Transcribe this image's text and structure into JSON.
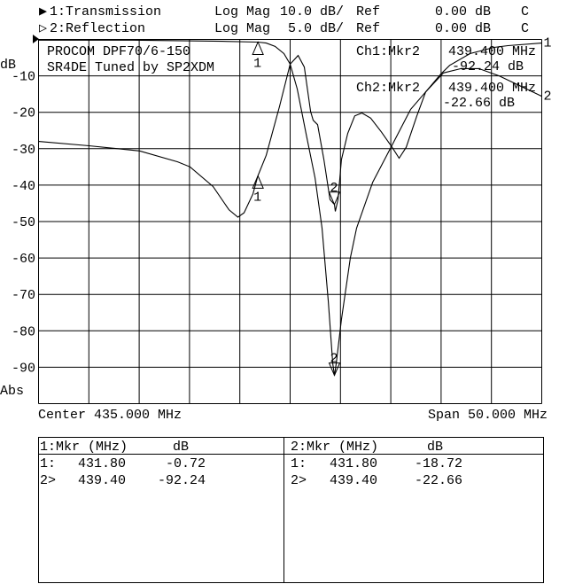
{
  "header": {
    "ch1": {
      "indicator": "▶",
      "name": "1:Transmission",
      "format": "Log Mag",
      "scale": "10.0 dB/",
      "ref_label": "Ref",
      "ref": "0.00 dB",
      "flag": "C"
    },
    "ch2": {
      "indicator": "▷",
      "name": "2:Reflection",
      "format": "Log Mag",
      "scale": "5.0 dB/",
      "ref_label": "Ref",
      "ref": "0.00 dB",
      "flag": "C"
    }
  },
  "annotation": {
    "title_line1": "PROCOM DPF70/6-150",
    "title_line2": "SR4DE Tuned by SP2XDM",
    "ch1_marker_label": "Ch1:Mkr2",
    "ch1_marker_freq": "439.400 MHz",
    "ch1_marker_value": "-92.24 dB",
    "ch2_marker_label": "Ch2:Mkr2",
    "ch2_marker_freq": "439.400 MHz",
    "ch2_marker_value": "-22.66 dB"
  },
  "footer": {
    "center": "Center 435.000 MHz",
    "span": "Span 50.000 MHz"
  },
  "marker_table": {
    "ch1": {
      "header_mkr": "1:Mkr (MHz)",
      "header_db": "dB",
      "rows": [
        {
          "id": "1:",
          "freq": "431.80",
          "db": "-0.72"
        },
        {
          "id": "2>",
          "freq": "439.40",
          "db": "-92.24"
        }
      ]
    },
    "ch2": {
      "header_mkr": "2:Mkr (MHz)",
      "header_db": "dB",
      "rows": [
        {
          "id": "1:",
          "freq": "431.80",
          "db": "-18.72"
        },
        {
          "id": "2>",
          "freq": "439.40",
          "db": "-22.66"
        }
      ]
    }
  },
  "chart_data": {
    "type": "line",
    "xlim": [
      410,
      460
    ],
    "x_unit": "MHz",
    "ylabel": "dB",
    "y_bottom_label": "Abs",
    "y_ticks": [
      "-10",
      "-20",
      "-30",
      "-40",
      "-50",
      "-60",
      "-70",
      "-80",
      "-90"
    ],
    "grid": true,
    "series": [
      {
        "name": "1:Transmission",
        "ylim": [
          -100,
          0
        ],
        "end_label": "1",
        "x": [
          410,
          419.42,
          428.22,
          431.8,
          432.62,
          433.5,
          434.38,
          435.0,
          435.7,
          436.58,
          437.47,
          438.17,
          438.79,
          439.23,
          439.4,
          439.58,
          440.1,
          440.99,
          441.6,
          443.2,
          445.13,
          446.97,
          448.47,
          449.97,
          450.85,
          452.87,
          455.25,
          456.65,
          460
        ],
        "y": [
          -0.2,
          -0.2,
          -0.5,
          -0.72,
          -1.0,
          -1.9,
          -3.9,
          -6.8,
          -13.6,
          -25.8,
          -38.0,
          -51.8,
          -72.0,
          -89.0,
          -92.24,
          -89.0,
          -76.9,
          -59.9,
          -51.8,
          -39.2,
          -29.0,
          -19.2,
          -14.4,
          -9.5,
          -7.1,
          -3.9,
          -2.2,
          -1.7,
          -1.0
        ]
      },
      {
        "name": "2:Reflection",
        "ylim": [
          -50,
          0
        ],
        "end_label": "2",
        "x": [
          410,
          415.02,
          420.04,
          423.82,
          425.05,
          427.34,
          428.93,
          429.81,
          430.42,
          431.3,
          431.8,
          432.62,
          433.94,
          435.0,
          435.79,
          436.41,
          437.03,
          437.29,
          437.73,
          438.35,
          438.96,
          439.4,
          439.49,
          439.75,
          440.1,
          440.72,
          441.42,
          442.13,
          443.0,
          444.07,
          445.13,
          445.83,
          446.53,
          447.59,
          448.47,
          450.23,
          451.99,
          453.75,
          455.77,
          457.89,
          460
        ],
        "y": [
          -14.0,
          -14.6,
          -15.3,
          -16.8,
          -17.5,
          -20.2,
          -23.4,
          -24.4,
          -23.8,
          -21.2,
          -18.72,
          -15.9,
          -9.2,
          -3.4,
          -2.2,
          -3.8,
          -9.9,
          -11.1,
          -11.7,
          -16.5,
          -22.0,
          -22.66,
          -23.6,
          -22.0,
          -16.5,
          -12.9,
          -10.5,
          -10.1,
          -10.8,
          -12.7,
          -14.8,
          -16.3,
          -14.8,
          -10.5,
          -7.2,
          -4.6,
          -4.0,
          -4.0,
          -5.0,
          -6.4,
          -7.8
        ]
      }
    ],
    "markers": [
      {
        "series": 0,
        "label": "1",
        "x": 431.8,
        "y": -0.72,
        "active": false
      },
      {
        "series": 0,
        "label": "2",
        "x": 439.4,
        "y": -92.24,
        "active": true
      },
      {
        "series": 1,
        "label": "1",
        "x": 431.8,
        "y": -18.72,
        "active": false
      },
      {
        "series": 1,
        "label": "2",
        "x": 439.4,
        "y": -22.66,
        "active": true
      }
    ]
  }
}
